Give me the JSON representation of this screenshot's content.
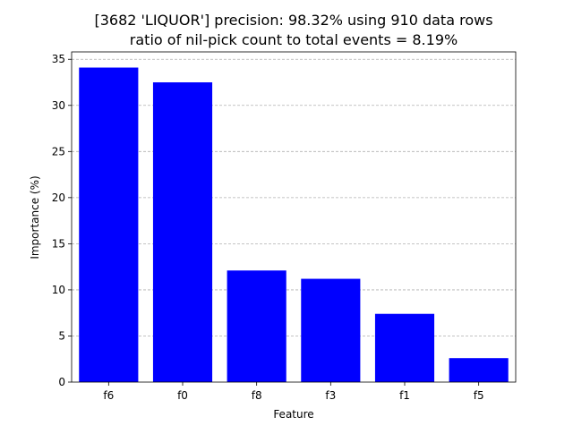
{
  "chart_data": {
    "type": "bar",
    "title_line1": "[3682 'LIQUOR'] precision: 98.32% using 910 data rows",
    "title_line2": "ratio of nil-pick count to total events = 8.19%",
    "xlabel": "Feature",
    "ylabel": "Importance (%)",
    "categories": [
      "f6",
      "f0",
      "f8",
      "f3",
      "f1",
      "f5"
    ],
    "values": [
      34.1,
      32.5,
      12.1,
      11.2,
      7.4,
      2.6
    ],
    "ylim": [
      0,
      35.8
    ],
    "yticks": [
      0,
      5,
      10,
      15,
      20,
      25,
      30,
      35
    ],
    "grid": "y-dashed",
    "bar_color": "#0000ff"
  }
}
